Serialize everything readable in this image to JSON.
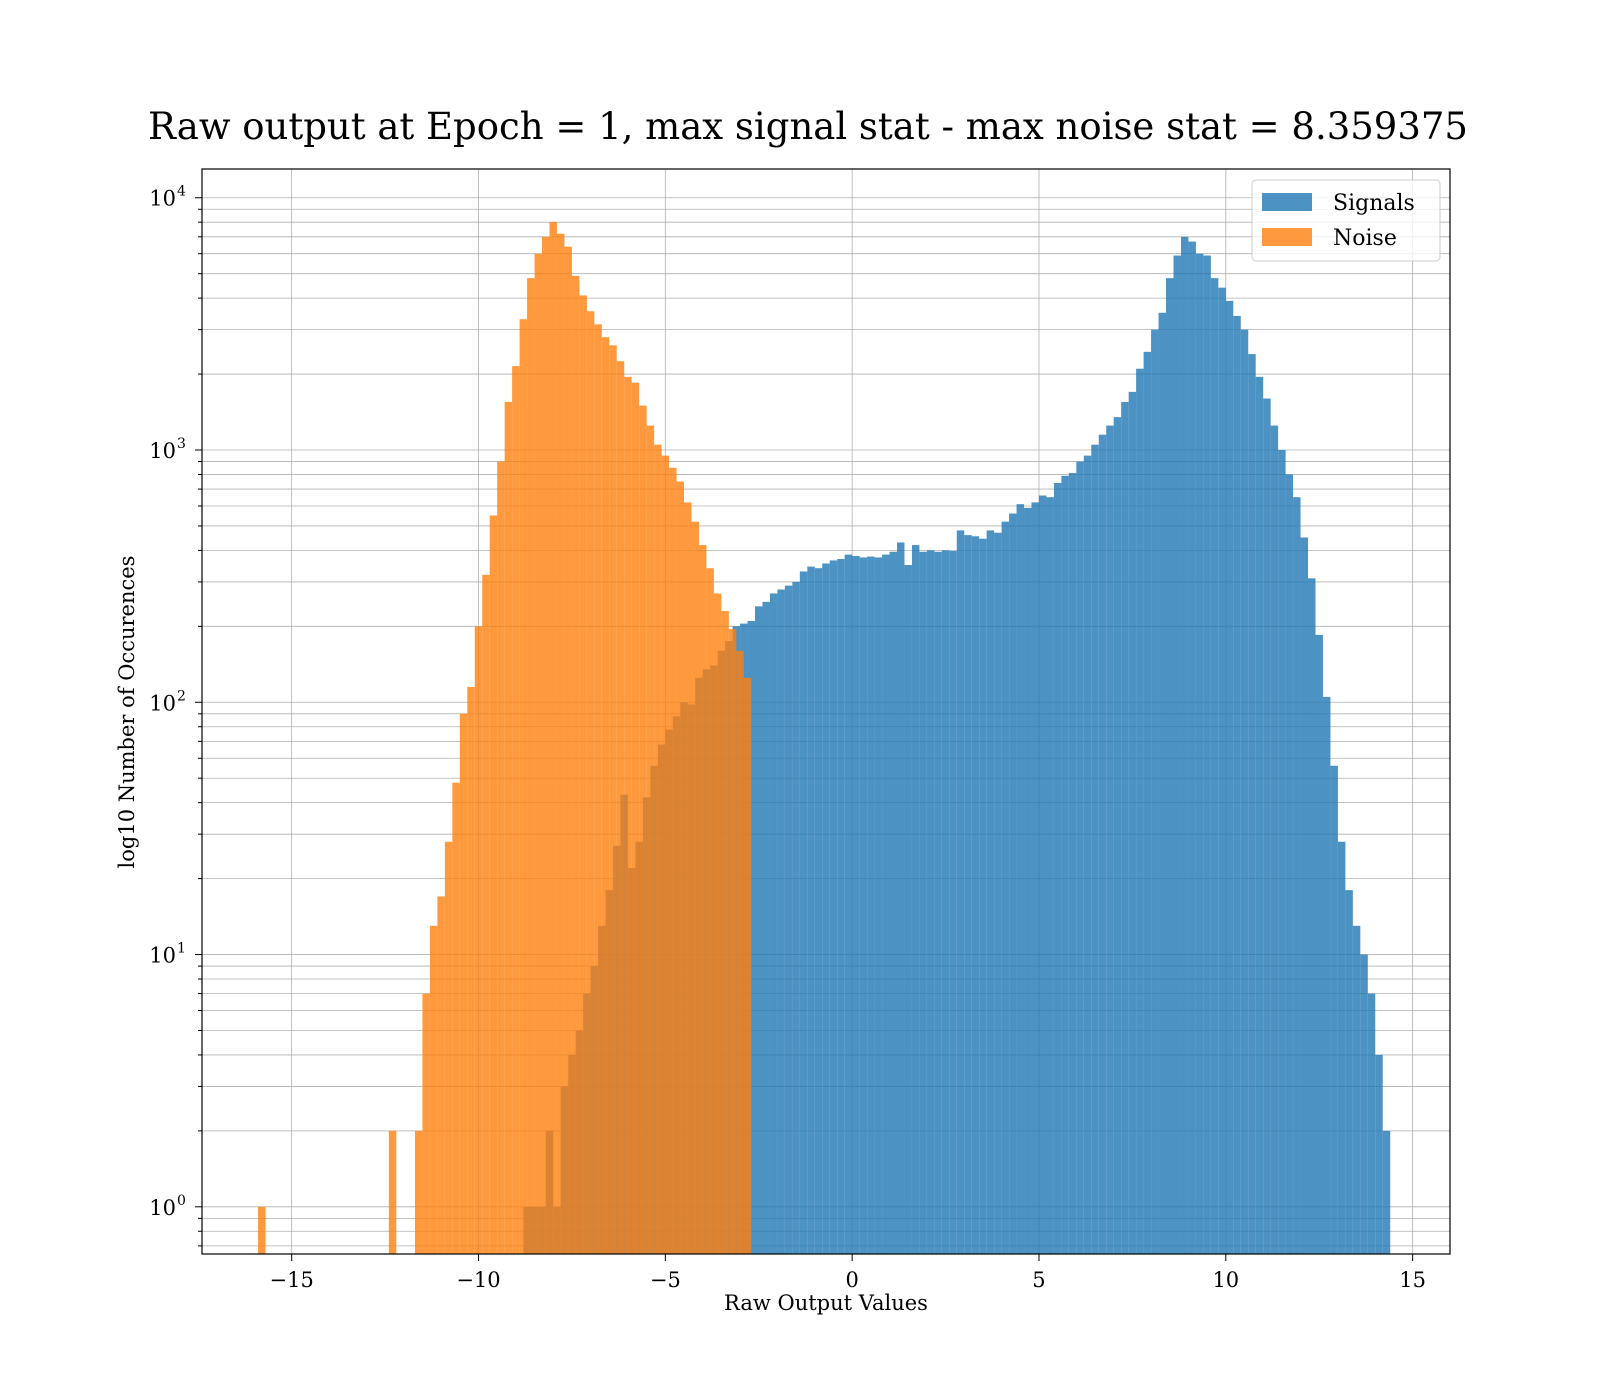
{
  "chart_data": {
    "type": "histogram",
    "title": "Raw output at Epoch = 1, max signal stat - max noise stat = 8.359375",
    "xlabel": "Raw Output Values",
    "ylabel": "log10 Number of Occurences",
    "xlim": [
      -17.4,
      16.0
    ],
    "ylim": [
      0.65,
      13000
    ],
    "y_scale": "log",
    "grid": true,
    "legend_position": "top-right",
    "x_ticks": [
      {
        "value": -15,
        "label": "−15"
      },
      {
        "value": -10,
        "label": "−10"
      },
      {
        "value": -5,
        "label": "−5"
      },
      {
        "value": 0,
        "label": "0"
      },
      {
        "value": 5,
        "label": "5"
      },
      {
        "value": 10,
        "label": "10"
      },
      {
        "value": 15,
        "label": "15"
      }
    ],
    "y_ticks": [
      {
        "value": 1,
        "base": "10",
        "exp": "0"
      },
      {
        "value": 10,
        "base": "10",
        "exp": "1"
      },
      {
        "value": 100,
        "base": "10",
        "exp": "2"
      },
      {
        "value": 1000,
        "base": "10",
        "exp": "3"
      },
      {
        "value": 10000,
        "base": "10",
        "exp": "4"
      }
    ],
    "series": [
      {
        "name": "Signals",
        "color": "#1f77b4",
        "opacity": 0.8,
        "bins": [
          [
            -8.8,
            -8.4,
            1
          ],
          [
            -8.4,
            -8.2,
            1
          ],
          [
            -8.2,
            -8.0,
            2
          ],
          [
            -8.0,
            -7.8,
            1
          ],
          [
            -7.8,
            -7.6,
            3
          ],
          [
            -7.6,
            -7.4,
            4
          ],
          [
            -7.4,
            -7.2,
            5
          ],
          [
            -7.2,
            -7.0,
            7
          ],
          [
            -7.0,
            -6.8,
            9
          ],
          [
            -6.8,
            -6.6,
            13
          ],
          [
            -6.6,
            -6.4,
            18
          ],
          [
            -6.4,
            -6.2,
            27
          ],
          [
            -6.2,
            -6.0,
            43
          ],
          [
            -6.0,
            -5.8,
            22
          ],
          [
            -5.8,
            -5.6,
            28
          ],
          [
            -5.6,
            -5.4,
            42
          ],
          [
            -5.4,
            -5.2,
            56
          ],
          [
            -5.2,
            -5.0,
            68
          ],
          [
            -5.0,
            -4.8,
            78
          ],
          [
            -4.8,
            -4.6,
            88
          ],
          [
            -4.6,
            -4.4,
            100
          ],
          [
            -4.4,
            -4.2,
            98
          ],
          [
            -4.2,
            -4.0,
            125
          ],
          [
            -4.0,
            -3.8,
            135
          ],
          [
            -3.8,
            -3.6,
            140
          ],
          [
            -3.6,
            -3.4,
            160
          ],
          [
            -3.4,
            -3.2,
            175
          ],
          [
            -3.2,
            -3.0,
            200
          ],
          [
            -3.0,
            -2.8,
            205
          ],
          [
            -2.8,
            -2.6,
            210
          ],
          [
            -2.6,
            -2.4,
            240
          ],
          [
            -2.4,
            -2.2,
            250
          ],
          [
            -2.2,
            -2.0,
            270
          ],
          [
            -2.0,
            -1.8,
            280
          ],
          [
            -1.8,
            -1.6,
            290
          ],
          [
            -1.6,
            -1.4,
            300
          ],
          [
            -1.4,
            -1.2,
            330
          ],
          [
            -1.2,
            -1.0,
            345
          ],
          [
            -1.0,
            -0.8,
            340
          ],
          [
            -0.8,
            -0.6,
            355
          ],
          [
            -0.6,
            -0.4,
            365
          ],
          [
            -0.4,
            -0.2,
            370
          ],
          [
            -0.2,
            0.0,
            385
          ],
          [
            0.0,
            0.2,
            380
          ],
          [
            0.2,
            0.4,
            375
          ],
          [
            0.4,
            0.6,
            378
          ],
          [
            0.6,
            0.8,
            375
          ],
          [
            0.8,
            1.0,
            385
          ],
          [
            1.0,
            1.2,
            395
          ],
          [
            1.2,
            1.4,
            430
          ],
          [
            1.4,
            1.6,
            350
          ],
          [
            1.6,
            1.8,
            420
          ],
          [
            1.8,
            2.0,
            395
          ],
          [
            2.0,
            2.2,
            400
          ],
          [
            2.2,
            2.4,
            395
          ],
          [
            2.4,
            2.6,
            400
          ],
          [
            2.6,
            2.8,
            398
          ],
          [
            2.8,
            3.0,
            480
          ],
          [
            3.0,
            3.2,
            460
          ],
          [
            3.2,
            3.4,
            455
          ],
          [
            3.4,
            3.6,
            445
          ],
          [
            3.6,
            3.8,
            480
          ],
          [
            3.8,
            4.0,
            470
          ],
          [
            4.0,
            4.2,
            520
          ],
          [
            4.2,
            4.4,
            560
          ],
          [
            4.4,
            4.6,
            610
          ],
          [
            4.6,
            4.8,
            590
          ],
          [
            4.8,
            5.0,
            620
          ],
          [
            5.0,
            5.2,
            660
          ],
          [
            5.2,
            5.4,
            650
          ],
          [
            5.4,
            5.6,
            740
          ],
          [
            5.6,
            5.8,
            790
          ],
          [
            5.8,
            6.0,
            810
          ],
          [
            6.0,
            6.2,
            900
          ],
          [
            6.2,
            6.4,
            950
          ],
          [
            6.4,
            6.6,
            1050
          ],
          [
            6.6,
            6.8,
            1150
          ],
          [
            6.8,
            7.0,
            1250
          ],
          [
            7.0,
            7.2,
            1350
          ],
          [
            7.2,
            7.4,
            1550
          ],
          [
            7.4,
            7.6,
            1700
          ],
          [
            7.6,
            7.8,
            2100
          ],
          [
            7.8,
            8.0,
            2450
          ],
          [
            8.0,
            8.2,
            3000
          ],
          [
            8.2,
            8.4,
            3500
          ],
          [
            8.4,
            8.6,
            4800
          ],
          [
            8.6,
            8.8,
            5900
          ],
          [
            8.8,
            9.0,
            7000
          ],
          [
            9.0,
            9.2,
            6700
          ],
          [
            9.2,
            9.4,
            6000
          ],
          [
            9.4,
            9.6,
            5900
          ],
          [
            9.6,
            9.8,
            4800
          ],
          [
            9.8,
            10.0,
            4400
          ],
          [
            10.0,
            10.2,
            3900
          ],
          [
            10.2,
            10.4,
            3400
          ],
          [
            10.4,
            10.6,
            3000
          ],
          [
            10.6,
            10.8,
            2400
          ],
          [
            10.8,
            11.0,
            1950
          ],
          [
            11.0,
            11.2,
            1600
          ],
          [
            11.2,
            11.4,
            1250
          ],
          [
            11.4,
            11.6,
            1000
          ],
          [
            11.6,
            11.8,
            800
          ],
          [
            11.8,
            12.0,
            650
          ],
          [
            12.0,
            12.2,
            450
          ],
          [
            12.2,
            12.4,
            310
          ],
          [
            12.4,
            12.6,
            185
          ],
          [
            12.6,
            12.8,
            105
          ],
          [
            12.8,
            13.0,
            56
          ],
          [
            13.0,
            13.2,
            28
          ],
          [
            13.2,
            13.4,
            18
          ],
          [
            13.4,
            13.6,
            13
          ],
          [
            13.6,
            13.8,
            10
          ],
          [
            13.8,
            14.0,
            7
          ],
          [
            14.0,
            14.2,
            4
          ],
          [
            14.2,
            14.4,
            2
          ]
        ]
      },
      {
        "name": "Noise",
        "color": "#ff7f0e",
        "opacity": 0.8,
        "bins": [
          [
            -15.9,
            -15.7,
            1
          ],
          [
            -12.4,
            -12.2,
            2
          ],
          [
            -11.7,
            -11.5,
            2
          ],
          [
            -11.5,
            -11.3,
            7
          ],
          [
            -11.3,
            -11.1,
            13
          ],
          [
            -11.1,
            -10.9,
            17
          ],
          [
            -10.9,
            -10.7,
            28
          ],
          [
            -10.7,
            -10.5,
            48
          ],
          [
            -10.5,
            -10.3,
            90
          ],
          [
            -10.3,
            -10.1,
            115
          ],
          [
            -10.1,
            -9.9,
            200
          ],
          [
            -9.9,
            -9.7,
            320
          ],
          [
            -9.7,
            -9.5,
            550
          ],
          [
            -9.5,
            -9.3,
            900
          ],
          [
            -9.3,
            -9.1,
            1550
          ],
          [
            -9.1,
            -8.9,
            2150
          ],
          [
            -8.9,
            -8.7,
            3300
          ],
          [
            -8.7,
            -8.5,
            4800
          ],
          [
            -8.5,
            -8.3,
            6000
          ],
          [
            -8.3,
            -8.1,
            7000
          ],
          [
            -8.1,
            -7.9,
            8000
          ],
          [
            -7.9,
            -7.7,
            7200
          ],
          [
            -7.7,
            -7.5,
            6400
          ],
          [
            -7.5,
            -7.3,
            4900
          ],
          [
            -7.3,
            -7.1,
            4100
          ],
          [
            -7.1,
            -6.9,
            3550
          ],
          [
            -6.9,
            -6.7,
            3150
          ],
          [
            -6.7,
            -6.5,
            2800
          ],
          [
            -6.5,
            -6.3,
            2600
          ],
          [
            -6.3,
            -6.1,
            2250
          ],
          [
            -6.1,
            -5.9,
            1950
          ],
          [
            -5.9,
            -5.7,
            1850
          ],
          [
            -5.7,
            -5.5,
            1500
          ],
          [
            -5.5,
            -5.3,
            1250
          ],
          [
            -5.3,
            -5.1,
            1050
          ],
          [
            -5.1,
            -4.9,
            950
          ],
          [
            -4.9,
            -4.7,
            850
          ],
          [
            -4.7,
            -4.5,
            750
          ],
          [
            -4.5,
            -4.3,
            620
          ],
          [
            -4.3,
            -4.1,
            520
          ],
          [
            -4.1,
            -3.9,
            420
          ],
          [
            -3.9,
            -3.7,
            340
          ],
          [
            -3.7,
            -3.5,
            270
          ],
          [
            -3.5,
            -3.3,
            230
          ],
          [
            -3.3,
            -3.1,
            195
          ],
          [
            -3.1,
            -2.9,
            160
          ],
          [
            -2.9,
            -2.7,
            125
          ]
        ]
      }
    ]
  },
  "legend": {
    "items": [
      {
        "label": "Signals",
        "color": "#1f77b4"
      },
      {
        "label": "Noise",
        "color": "#ff7f0e"
      }
    ]
  }
}
